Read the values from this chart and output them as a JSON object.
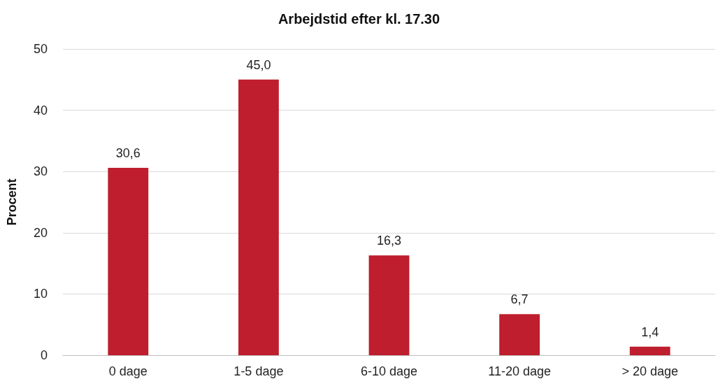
{
  "chart_data": {
    "type": "bar",
    "title": "Arbejdstid efter kl. 17.30",
    "ylabel": "Procent",
    "categories": [
      "0 dage",
      "1-5 dage",
      "6-10 dage",
      "11-20 dage",
      "> 20 dage"
    ],
    "values": [
      30.6,
      45.0,
      16.3,
      6.7,
      1.4
    ],
    "color": "#be1e2d",
    "value_labels": [
      "30,6",
      "45,0",
      "16,3",
      "6,7",
      "1,4"
    ],
    "ylim": [
      0,
      50
    ],
    "yticks": [
      0,
      10,
      20,
      30,
      40,
      50
    ],
    "grid": "y"
  }
}
